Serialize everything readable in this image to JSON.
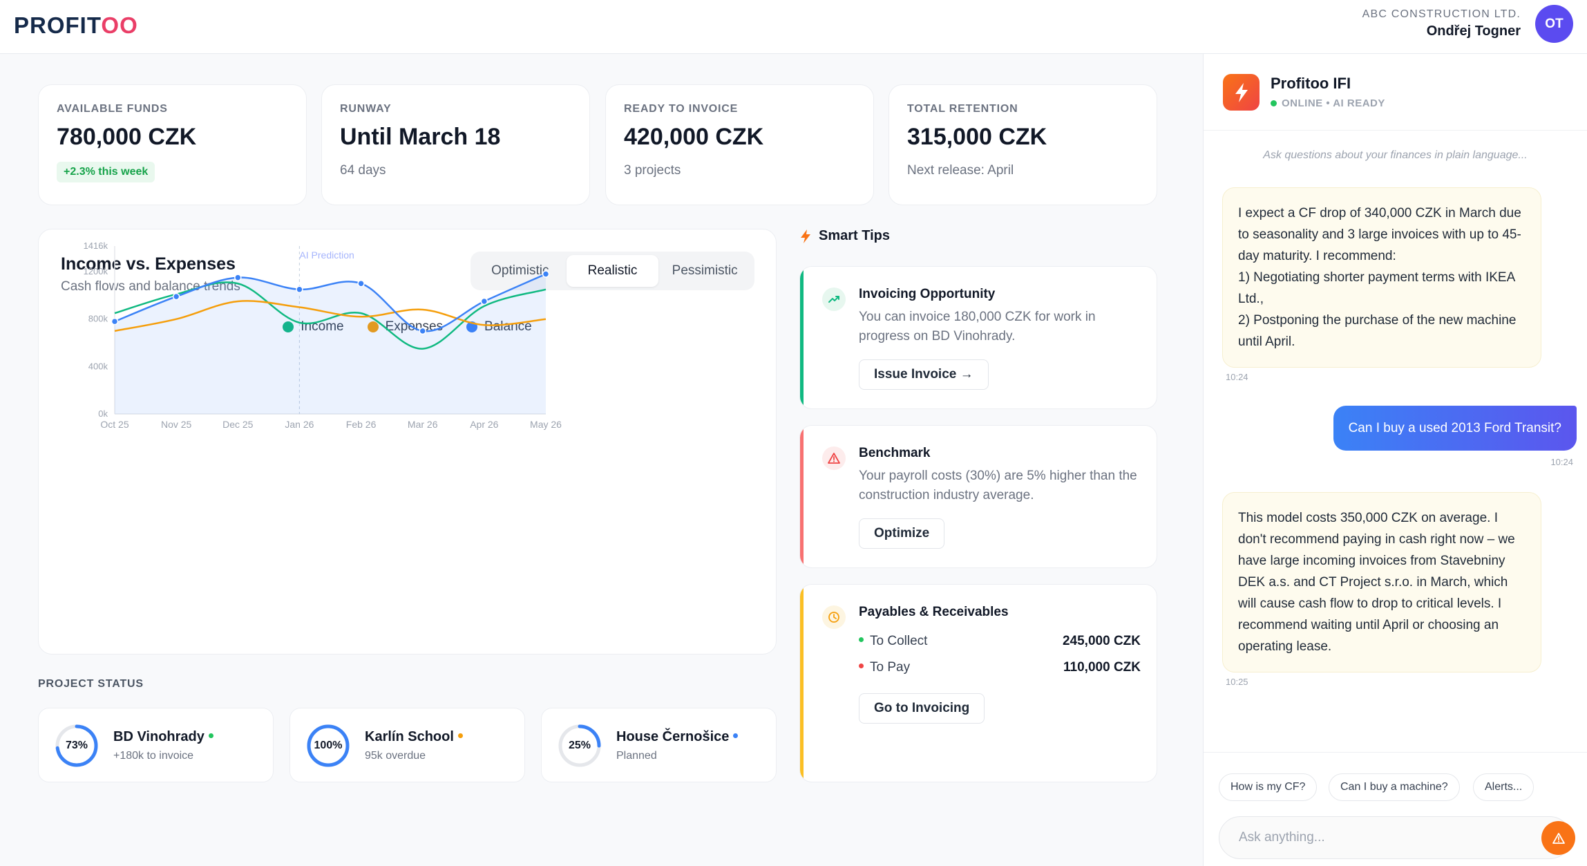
{
  "header": {
    "logo_part1": "PROFIT",
    "logo_part2": "OO",
    "company": "ABC CONSTRUCTION LTD.",
    "user_name": "Ondřej Togner",
    "avatar_initials": "OT"
  },
  "stats": [
    {
      "label": "AVAILABLE FUNDS",
      "value": "780,000 CZK",
      "badge": "+2.3% this week"
    },
    {
      "label": "RUNWAY",
      "value": "Until March 18",
      "sub": "64 days"
    },
    {
      "label": "READY TO INVOICE",
      "value": "420,000 CZK",
      "sub": "3 projects"
    },
    {
      "label": "TOTAL RETENTION",
      "value": "315,000 CZK",
      "sub": "Next release: April"
    }
  ],
  "chart": {
    "title": "Income vs. Expenses",
    "subtitle": "Cash flows and balance trends",
    "scenarios": [
      "Optimistic",
      "Realistic",
      "Pessimistic"
    ],
    "active_scenario": "Realistic"
  },
  "chart_data": {
    "type": "line",
    "categories": [
      "Oct 25",
      "Nov 25",
      "Dec 25",
      "Jan 26",
      "Feb 26",
      "Mar 26",
      "Apr 26",
      "May 26"
    ],
    "y_ticks": [
      "0k",
      "400k",
      "800k",
      "1200k",
      "1416k"
    ],
    "ylim": [
      0,
      1416
    ],
    "annotation": "AI Prediction",
    "annotation_at": "Jan 26",
    "grid": false,
    "legend_position": "top-center",
    "series": [
      {
        "name": "Income",
        "color": "#10b981",
        "values": [
          850,
          1010,
          1100,
          770,
          850,
          550,
          910,
          1050
        ]
      },
      {
        "name": "Expenses",
        "color": "#f59e0b",
        "values": [
          700,
          800,
          950,
          900,
          820,
          880,
          750,
          800
        ]
      },
      {
        "name": "Balance",
        "color": "#3b82f6",
        "values": [
          780,
          990,
          1150,
          1050,
          1100,
          700,
          950,
          1180
        ],
        "area": true
      }
    ]
  },
  "projects": {
    "section_label": "PROJECT STATUS",
    "items": [
      {
        "pct_label": "73%",
        "percent": 73,
        "name": "BD Vinohrady",
        "sub": "+180k to invoice",
        "dot_color": "#22c55e"
      },
      {
        "pct_label": "100%",
        "percent": 100,
        "name": "Karlín School",
        "sub": "95k overdue",
        "dot_color": "#f59e0b"
      },
      {
        "pct_label": "25%",
        "percent": 25,
        "name": "House Černošice",
        "sub": "Planned",
        "dot_color": "#3b82f6"
      }
    ]
  },
  "tips": {
    "heading": "Smart Tips",
    "invoicing": {
      "title": "Invoicing Opportunity",
      "text": "You can invoice 180,000 CZK for work in progress on BD Vinohrady.",
      "button": "Issue Invoice →"
    },
    "benchmark": {
      "title": "Benchmark",
      "text": "Your payroll costs (30%) are 5% higher than the construction industry average.",
      "button": "Optimize"
    },
    "payables": {
      "title": "Payables & Receivables",
      "collect_label": "To Collect",
      "collect_value": "245,000 CZK",
      "pay_label": "To Pay",
      "pay_value": "110,000 CZK",
      "button": "Go to Invoicing"
    }
  },
  "chat": {
    "bot_name": "Profitoo IFI",
    "status": "ONLINE • AI READY",
    "hint": "Ask questions about your finances in plain language...",
    "messages": [
      {
        "from": "bot",
        "text": "I expect a CF drop of 340,000 CZK in March due to seasonality and 3 large invoices with up to 45-day maturity. I recommend:\n1) Negotiating shorter payment terms with IKEA Ltd.,\n2) Postponing the purchase of the new machine until April.",
        "time": "10:24"
      },
      {
        "from": "user",
        "text": "Can I buy a used 2013 Ford Transit?",
        "time": "10:24"
      },
      {
        "from": "bot",
        "text": "This model costs 350,000 CZK on average. I don't recommend paying in cash right now – we have large incoming invoices from Stavebniny DEK a.s. and CT Project s.r.o. in March, which will cause cash flow to drop to critical levels. I recommend waiting until April or choosing an operating lease.",
        "time": "10:25"
      }
    ],
    "quick_replies": [
      "How is my CF?",
      "Can I buy a machine?",
      "Alerts..."
    ],
    "input_placeholder": "Ask anything..."
  }
}
